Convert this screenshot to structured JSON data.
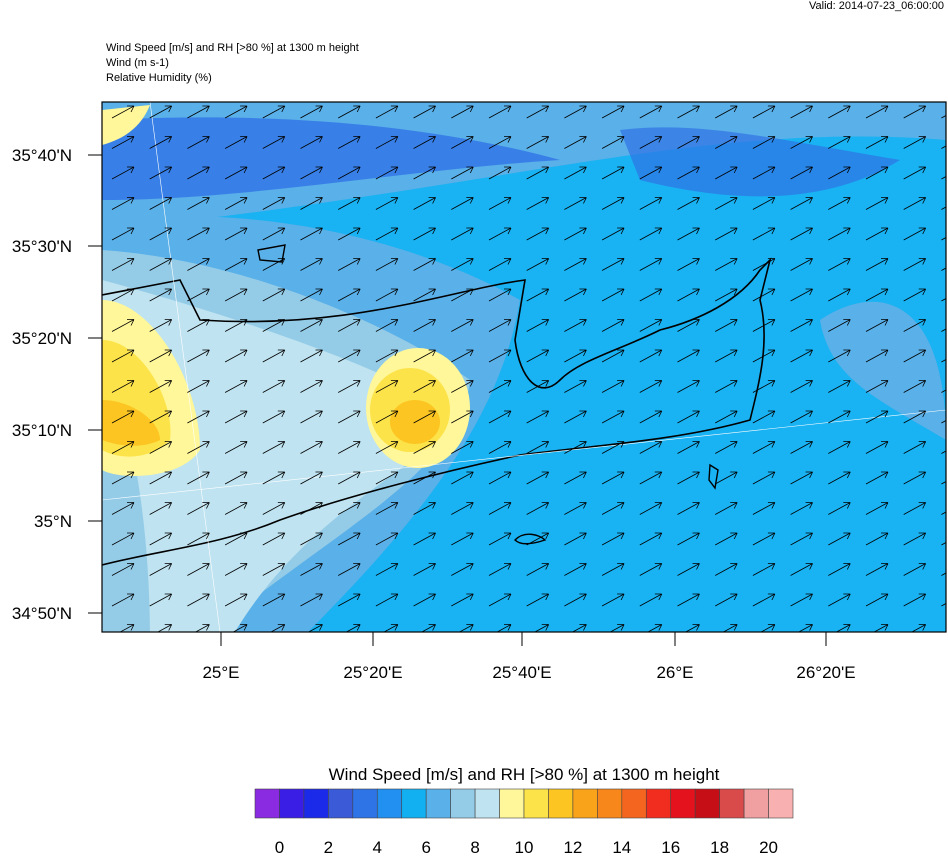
{
  "header": {
    "valid": "Valid: 2014-07-23_06:00:00",
    "lines": [
      "Wind Speed [m/s] and RH [>80 %] at 1300 m height",
      "Wind   (m s-1)",
      "Relative Humidity   (%)"
    ]
  },
  "map": {
    "lat_labels": [
      "35°40'N",
      "35°30'N",
      "35°20'N",
      "35°10'N",
      "35°N",
      "34°50'N"
    ],
    "lon_labels": [
      "25°E",
      "25°20'E",
      "25°40'E",
      "26°E",
      "26°20'E"
    ]
  },
  "colorbar": {
    "title": "Wind Speed [m/s] and RH [>80 %] at 1300 m height",
    "range": [
      -1,
      21
    ],
    "ticks": [
      0,
      2,
      4,
      6,
      8,
      10,
      12,
      14,
      16,
      18,
      20
    ],
    "colors": [
      "#8a2be2",
      "#3a1ee6",
      "#1a2ae8",
      "#3a5ad8",
      "#2f74e6",
      "#2290f0",
      "#12b0f0",
      "#5ab0e8",
      "#94cce8",
      "#bfe3f0",
      "#fff799",
      "#fde34a",
      "#fcc521",
      "#f9a31a",
      "#f7871b",
      "#f4661f",
      "#f12d1f",
      "#e4121c",
      "#c60e17",
      "#d94a4a",
      "#f0a0a0",
      "#f8b0b0"
    ]
  }
}
